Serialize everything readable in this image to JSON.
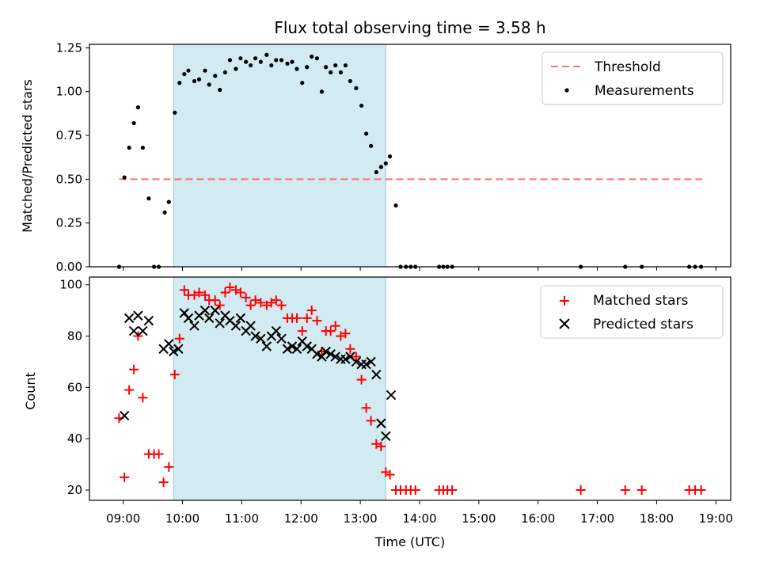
{
  "title": "Flux total observing time = 3.58 h",
  "chart_data": [
    {
      "panel": "top",
      "type": "scatter",
      "ylabel": "Matched/Predicted stars",
      "xlabel": "",
      "xlim": [
        8.43,
        19.25
      ],
      "ylim": [
        0,
        1.27
      ],
      "yticks": [
        0,
        0.25,
        0.5,
        0.75,
        1.0,
        1.25
      ],
      "ytick_labels": [
        "0.00",
        "0.25",
        "0.50",
        "0.75",
        "1.00",
        "1.25"
      ],
      "shaded_span": [
        9.85,
        13.43
      ],
      "threshold": {
        "name": "Threshold",
        "value": 0.5,
        "x_range": [
          8.93,
          18.77
        ],
        "color": "#ff7070"
      },
      "series": [
        {
          "name": "Measurements",
          "color": "#000000",
          "x": [
            8.93,
            9.02,
            9.1,
            9.18,
            9.25,
            9.33,
            9.43,
            9.52,
            9.6,
            9.7,
            9.77,
            9.87,
            9.95,
            10.03,
            10.1,
            10.2,
            10.28,
            10.38,
            10.45,
            10.55,
            10.63,
            10.72,
            10.8,
            10.9,
            10.98,
            11.07,
            11.15,
            11.23,
            11.32,
            11.42,
            11.5,
            11.58,
            11.67,
            11.77,
            11.85,
            11.93,
            12.02,
            12.1,
            12.18,
            12.27,
            12.35,
            12.42,
            12.5,
            12.58,
            12.67,
            12.75,
            12.83,
            12.93,
            13.02,
            13.1,
            13.18,
            13.27,
            13.35,
            13.43,
            13.5,
            13.6,
            13.68,
            13.77,
            13.85,
            13.93,
            14.33,
            14.4,
            14.47,
            14.55,
            16.72,
            17.47,
            17.75,
            18.55,
            18.65,
            18.75
          ],
          "y": [
            0.0,
            0.51,
            0.68,
            0.82,
            0.91,
            0.68,
            0.39,
            0.0,
            0.0,
            0.31,
            0.37,
            0.88,
            1.05,
            1.1,
            1.12,
            1.06,
            1.07,
            1.12,
            1.04,
            1.09,
            1.01,
            1.11,
            1.18,
            1.13,
            1.19,
            1.17,
            1.15,
            1.19,
            1.17,
            1.21,
            1.15,
            1.18,
            1.18,
            1.16,
            1.17,
            1.13,
            1.05,
            1.14,
            1.2,
            1.19,
            1.0,
            1.14,
            1.11,
            1.15,
            1.11,
            1.15,
            1.06,
            1.02,
            0.92,
            0.76,
            0.69,
            0.54,
            0.57,
            0.59,
            0.63,
            0.35,
            0.0,
            0.0,
            0.0,
            0.0,
            0.0,
            0.0,
            0.0,
            0.0,
            0.0,
            0.0,
            0.0,
            0.0,
            0.0,
            0.0
          ]
        }
      ],
      "legend": [
        {
          "label": "Threshold",
          "marker": "dashed-line",
          "color": "#ff7070"
        },
        {
          "label": "Measurements",
          "marker": "dot",
          "color": "#000000"
        }
      ]
    },
    {
      "panel": "bottom",
      "type": "scatter",
      "ylabel": "Count",
      "xlabel": "Time (UTC)",
      "xlim": [
        8.43,
        19.25
      ],
      "ylim": [
        16,
        103
      ],
      "yticks": [
        20,
        40,
        60,
        80,
        100
      ],
      "ytick_labels": [
        "20",
        "40",
        "60",
        "80",
        "100"
      ],
      "xticks": [
        9,
        10,
        11,
        12,
        13,
        14,
        15,
        16,
        17,
        18,
        19
      ],
      "xtick_labels": [
        "09:00",
        "10:00",
        "11:00",
        "12:00",
        "13:00",
        "14:00",
        "15:00",
        "16:00",
        "17:00",
        "18:00",
        "19:00"
      ],
      "shaded_span": [
        9.85,
        13.43
      ],
      "series": [
        {
          "name": "Matched stars",
          "marker": "plus",
          "color": "#ff0000",
          "x": [
            8.93,
            9.02,
            9.1,
            9.18,
            9.25,
            9.33,
            9.43,
            9.52,
            9.6,
            9.68,
            9.77,
            9.87,
            9.95,
            10.03,
            10.1,
            10.2,
            10.28,
            10.38,
            10.45,
            10.55,
            10.63,
            10.72,
            10.8,
            10.9,
            10.98,
            11.07,
            11.15,
            11.23,
            11.32,
            11.42,
            11.5,
            11.58,
            11.67,
            11.77,
            11.85,
            11.93,
            12.02,
            12.1,
            12.18,
            12.27,
            12.35,
            12.42,
            12.5,
            12.58,
            12.67,
            12.75,
            12.83,
            12.93,
            13.02,
            13.1,
            13.18,
            13.27,
            13.35,
            13.43,
            13.5,
            13.6,
            13.68,
            13.77,
            13.85,
            13.93,
            14.33,
            14.4,
            14.47,
            14.55,
            16.72,
            17.47,
            17.75,
            18.55,
            18.65,
            18.75
          ],
          "y": [
            48,
            25,
            59,
            67,
            80,
            56,
            34,
            34,
            34,
            23,
            29,
            65,
            79,
            98,
            96,
            96,
            97,
            96,
            94,
            94,
            92,
            97,
            99,
            98,
            97,
            95,
            92,
            94,
            93,
            92,
            93,
            94,
            92,
            87,
            87,
            87,
            82,
            87,
            90,
            86,
            74,
            82,
            82,
            84,
            80,
            81,
            75,
            72,
            63,
            52,
            47,
            38,
            37,
            27,
            26,
            20,
            20,
            20,
            20,
            20,
            20,
            20,
            20,
            20,
            20,
            20,
            20,
            20,
            20,
            20
          ]
        },
        {
          "name": "Predicted stars",
          "marker": "x",
          "color": "#000000",
          "x": [
            9.02,
            9.1,
            9.18,
            9.25,
            9.33,
            9.43,
            9.68,
            9.77,
            9.85,
            9.93,
            10.03,
            10.1,
            10.2,
            10.28,
            10.38,
            10.45,
            10.55,
            10.63,
            10.72,
            10.8,
            10.9,
            10.98,
            11.07,
            11.15,
            11.23,
            11.32,
            11.42,
            11.5,
            11.58,
            11.67,
            11.77,
            11.85,
            11.93,
            12.02,
            12.1,
            12.18,
            12.27,
            12.35,
            12.42,
            12.5,
            12.58,
            12.67,
            12.75,
            12.83,
            12.93,
            13.02,
            13.1,
            13.18,
            13.27,
            13.35,
            13.43,
            13.52
          ],
          "y": [
            49,
            87,
            82,
            88,
            82,
            86,
            75,
            77,
            74,
            75,
            89,
            87,
            84,
            88,
            90,
            87,
            90,
            85,
            88,
            86,
            84,
            87,
            82,
            84,
            80,
            79,
            76,
            80,
            82,
            79,
            75,
            76,
            75,
            78,
            76,
            75,
            73,
            72,
            74,
            73,
            72,
            71,
            71,
            72,
            70,
            69,
            69,
            70,
            65,
            46,
            41,
            57
          ]
        }
      ],
      "legend": [
        {
          "label": "Matched stars",
          "marker": "plus",
          "color": "#ff0000"
        },
        {
          "label": "Predicted stars",
          "marker": "x",
          "color": "#000000"
        }
      ]
    }
  ]
}
